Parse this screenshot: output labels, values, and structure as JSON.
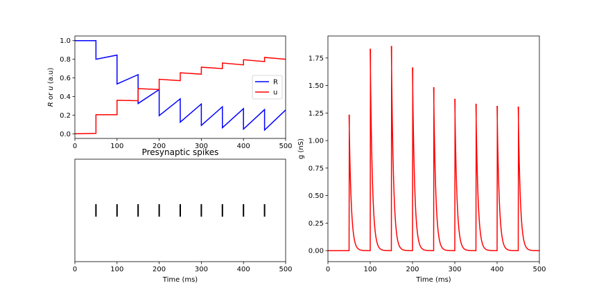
{
  "chart_data": [
    {
      "type": "line",
      "id": "ru",
      "xlabel": "",
      "ylabel_parts": [
        "R",
        " or ",
        "u",
        " (a.u)"
      ],
      "xlim": [
        0,
        500
      ],
      "ylim": [
        -0.05,
        1.05
      ],
      "xticks": [
        0,
        100,
        200,
        300,
        400,
        500
      ],
      "yticks": [
        0.0,
        0.2,
        0.4,
        0.6,
        0.8,
        1.0
      ],
      "xtick_labels": [
        "0",
        "100",
        "200",
        "300",
        "400",
        "500"
      ],
      "ytick_labels": [
        "0.0",
        "0.2",
        "0.4",
        "0.6",
        "0.8",
        "1.0"
      ],
      "legend_position": "center-right",
      "series": [
        {
          "name": "R",
          "color": "#0000ff",
          "x": [
            0,
            50,
            50,
            100,
            100,
            150,
            150,
            200,
            200,
            250,
            250,
            300,
            300,
            350,
            350,
            400,
            400,
            450,
            450,
            500
          ],
          "y": [
            1.0,
            1.0,
            0.8,
            0.845,
            0.535,
            0.635,
            0.325,
            0.475,
            0.195,
            0.375,
            0.125,
            0.32,
            0.09,
            0.29,
            0.065,
            0.27,
            0.05,
            0.26,
            0.04,
            0.255
          ]
        },
        {
          "name": "u",
          "color": "#ff0000",
          "x": [
            0,
            50,
            50,
            100,
            100,
            150,
            150,
            200,
            200,
            250,
            250,
            300,
            300,
            350,
            350,
            400,
            400,
            450,
            450,
            500
          ],
          "y": [
            0.0,
            0.005,
            0.205,
            0.205,
            0.36,
            0.355,
            0.485,
            0.475,
            0.585,
            0.57,
            0.655,
            0.64,
            0.715,
            0.7,
            0.76,
            0.74,
            0.795,
            0.775,
            0.82,
            0.8
          ]
        }
      ]
    },
    {
      "type": "raster",
      "id": "spikes",
      "title": "Presynaptic spikes",
      "xlabel": "Time (ms)",
      "ylabel": "",
      "xlim": [
        0,
        500
      ],
      "xticks": [
        0,
        100,
        200,
        300,
        400,
        500
      ],
      "xtick_labels": [
        "0",
        "100",
        "200",
        "300",
        "400",
        "500"
      ],
      "spike_times": [
        50,
        100,
        150,
        200,
        250,
        300,
        350,
        400,
        450
      ],
      "color": "#000000"
    },
    {
      "type": "line",
      "id": "g",
      "xlabel": "Time (ms)",
      "ylabel": "g (nS)",
      "xlim": [
        0,
        500
      ],
      "ylim": [
        -0.1,
        1.95
      ],
      "xticks": [
        0,
        100,
        200,
        300,
        400,
        500
      ],
      "yticks": [
        0.0,
        0.25,
        0.5,
        0.75,
        1.0,
        1.25,
        1.5,
        1.75
      ],
      "xtick_labels": [
        "0",
        "100",
        "200",
        "300",
        "400",
        "500"
      ],
      "ytick_labels": [
        "0.00",
        "0.25",
        "0.50",
        "0.75",
        "1.00",
        "1.25",
        "1.50",
        "1.75"
      ],
      "color": "#ff0000",
      "decay_tau_ms": 5,
      "peaks": [
        {
          "t": 50,
          "g": 1.23
        },
        {
          "t": 100,
          "g": 1.83
        },
        {
          "t": 150,
          "g": 1.855
        },
        {
          "t": 200,
          "g": 1.66
        },
        {
          "t": 250,
          "g": 1.48
        },
        {
          "t": 300,
          "g": 1.375
        },
        {
          "t": 350,
          "g": 1.33
        },
        {
          "t": 400,
          "g": 1.31
        },
        {
          "t": 450,
          "g": 1.305
        }
      ]
    }
  ]
}
